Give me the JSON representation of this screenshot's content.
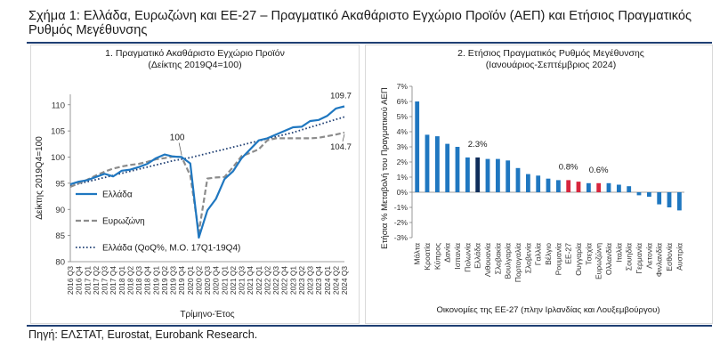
{
  "title": "Σχήμα 1: Ελλάδα, Ευρωζώνη και ΕΕ-27 – Πραγματικό Ακαθάριστο Εγχώριο Προϊόν (ΑΕΠ) και Ετήσιος Πραγματικός Ρυθμός Μεγέθυνσης",
  "source": "Πηγή: ΕΛΣΤΑΤ, Eurostat, Eurobank Research.",
  "colors": {
    "greece": "#1f77c0",
    "euro": "#8c8c8c",
    "trend": "#1f3f73",
    "bar": "#1f77c0",
    "bar_dark": "#0f2d5a",
    "bar_red": "#d7263d"
  },
  "chart_data": [
    {
      "type": "line",
      "title": "1. Πραγματικό Ακαθάριστο Εγχώριο Προϊόν",
      "subtitle": "(Δείκτης 2019Q4=100)",
      "xlabel": "Τρίμηνο-Έτος",
      "ylabel": "Δείκτης 2019Q4=100",
      "ylim": [
        80,
        112
      ],
      "yticks": [
        80,
        85,
        90,
        95,
        100,
        105,
        110
      ],
      "grid": false,
      "legend_position": "left",
      "x": [
        "2016 Q3",
        "2016 Q4",
        "2017 Q1",
        "2017 Q2",
        "2017 Q3",
        "2017 Q4",
        "2018 Q1",
        "2018 Q2",
        "2018 Q3",
        "2018 Q4",
        "2019 Q1",
        "2019 Q2",
        "2019 Q3",
        "2019 Q4",
        "2020 Q1",
        "2020 Q2",
        "2020 Q3",
        "2020 Q4",
        "2021 Q1",
        "2021 Q2",
        "2021 Q3",
        "2021 Q4",
        "2022 Q1",
        "2022 Q2",
        "2022 Q3",
        "2022 Q4",
        "2023 Q1",
        "2023 Q2",
        "2023 Q3",
        "2023 Q4",
        "2024 Q1",
        "2024 Q2",
        "2024 Q3"
      ],
      "x_tick_labels": [
        "2016 Q3",
        "2016 Q4",
        "2017 Q1",
        "2017 Q2",
        "2017 Q3",
        "2017 Q4",
        "2018 Q1",
        "2018 Q2",
        "2018 Q3",
        "2018 Q4",
        "2019 Q1",
        "2019 Q2",
        "2019 Q3",
        "2019 Q4",
        "2020 Q1",
        "2020 Q2",
        "2020 Q3",
        "2020 Q4",
        "2021 Q1",
        "2021 Q2",
        "2021 Q3",
        "2021 Q4",
        "2022 Q1",
        "2022 Q2",
        "2022 Q3",
        "2022 Q4",
        "2023 Q1",
        "2023 Q2",
        "2023 Q3",
        "2023 Q4",
        "2024 Q1",
        "2024 Q2",
        "2024 Q3"
      ],
      "series": [
        {
          "name": "Ελλάδα",
          "style": "solid",
          "values": [
            94.8,
            95.3,
            95.6,
            96.2,
            96.8,
            96.3,
            97.4,
            97.6,
            98.1,
            98.7,
            99.8,
            100.5,
            100.1,
            100.0,
            98.8,
            84.6,
            89.8,
            92.0,
            95.8,
            97.3,
            99.8,
            101.5,
            103.2,
            103.6,
            104.3,
            105.0,
            105.7,
            105.8,
            106.9,
            107.1,
            107.9,
            109.3,
            109.7
          ]
        },
        {
          "name": "Ευρωζώνη",
          "style": "dashed",
          "values": [
            94.3,
            95.0,
            95.7,
            96.5,
            97.2,
            97.8,
            98.2,
            98.5,
            98.7,
            99.1,
            99.6,
            99.8,
            100.1,
            100.0,
            96.5,
            85.6,
            95.9,
            96.1,
            96.2,
            98.1,
            100.2,
            100.8,
            101.5,
            103.2,
            103.6,
            103.6,
            103.6,
            103.6,
            103.6,
            103.7,
            104.0,
            104.3,
            104.7
          ]
        },
        {
          "name": "Ελλάδα (QoQ%, Μ.Ο. 17Q1-19Q4)",
          "style": "dotted",
          "values": [
            94.5,
            94.9,
            95.3,
            95.7,
            96.1,
            96.5,
            96.9,
            97.3,
            97.7,
            98.1,
            98.5,
            98.9,
            99.3,
            99.6,
            99.9,
            100.3,
            100.7,
            101.1,
            101.5,
            101.9,
            102.3,
            102.7,
            103.1,
            103.5,
            103.9,
            104.3,
            104.7,
            105.2,
            105.7,
            106.2,
            106.7,
            107.2,
            107.7
          ]
        }
      ],
      "annotations": [
        {
          "text": "100",
          "x": "2019 Q4",
          "y": 100
        },
        {
          "text": "109.7",
          "x": "2024 Q3",
          "y": 109.7
        },
        {
          "text": "104.7",
          "x": "2024 Q3",
          "y": 104.7
        }
      ]
    },
    {
      "type": "bar",
      "title": "2. Ετήσιος Πραγματικός Ρυθμός Μεγέθυνσης",
      "subtitle": "(Ιανουάριος-Σεπτέμβριος 2024)",
      "xlabel": "Οικονομίες της ΕΕ-27 (πλην Ιρλανδίας και Λουξεμβούργου)",
      "ylabel": "Ετήσια % Μεταβολή του Πραγματικού ΑΕΠ",
      "ylim": [
        -3,
        7
      ],
      "yticks": [
        -3,
        -2,
        -1,
        0,
        1,
        2,
        3,
        4,
        5,
        6,
        7
      ],
      "ytick_labels": [
        "-3%",
        "-2%",
        "-1%",
        "0%",
        "1%",
        "2%",
        "3%",
        "4%",
        "5%",
        "6%",
        "7%"
      ],
      "grid": false,
      "categories": [
        "Μάλτα",
        "Κροατία",
        "Κύπρος",
        "Δανία",
        "Ισπανία",
        "Πολωνία",
        "Ελλάδα",
        "Λιθουανία",
        "Σλοβακία",
        "Βουλγαρία",
        "Πορτογαλία",
        "Σλοβενία",
        "Γαλλία",
        "Βέλγιο",
        "Ρουμανία",
        "ΕΕ-27",
        "Ουγγαρία",
        "Τσεχία",
        "Ευρωζώνη",
        "Ολλανδία",
        "Ιταλία",
        "Σουηδία",
        "Γερμανία",
        "Λετονία",
        "Φινλανδία",
        "Εσθονία",
        "Αυστρία"
      ],
      "values": [
        6.0,
        3.8,
        3.7,
        3.2,
        3.0,
        2.3,
        2.3,
        2.2,
        2.2,
        2.1,
        1.6,
        1.2,
        1.1,
        0.9,
        0.8,
        0.8,
        0.7,
        0.6,
        0.6,
        0.6,
        0.5,
        0.4,
        -0.2,
        -0.3,
        -0.8,
        -1.0,
        -1.2
      ],
      "highlight": {
        "Ελλάδα": "dark",
        "ΕΕ-27": "red",
        "Ουγγαρία": "red",
        "Ευρωζώνη": "red"
      },
      "annotations": [
        {
          "text": "2.3%",
          "category": "Ελλάδα"
        },
        {
          "text": "0.8%",
          "category": "ΕΕ-27"
        },
        {
          "text": "0.6%",
          "category": "Ευρωζώνη"
        }
      ]
    }
  ]
}
